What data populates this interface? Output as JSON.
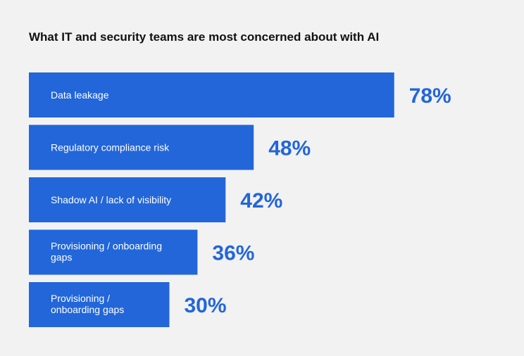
{
  "chart_data": {
    "type": "bar",
    "orientation": "horizontal",
    "title": "What IT and security teams are most concerned about with AI",
    "categories": [
      "Data leakage",
      "Regulatory compliance risk",
      "Shadow AI / lack of visibility",
      "Provisioning / onboarding gaps",
      "Provisioning / onboarding gaps"
    ],
    "values": [
      78,
      48,
      42,
      36,
      30
    ],
    "value_labels": [
      "78%",
      "48%",
      "42%",
      "36%",
      "30%"
    ],
    "unit": "%",
    "xlim": [
      0,
      100
    ],
    "grid": false,
    "legend": "none",
    "colors": {
      "bar": "#2266d9",
      "value_text": "#2266d9",
      "bar_text": "#ffffff",
      "title_text": "#111111",
      "background": "#f2f2f3"
    }
  }
}
